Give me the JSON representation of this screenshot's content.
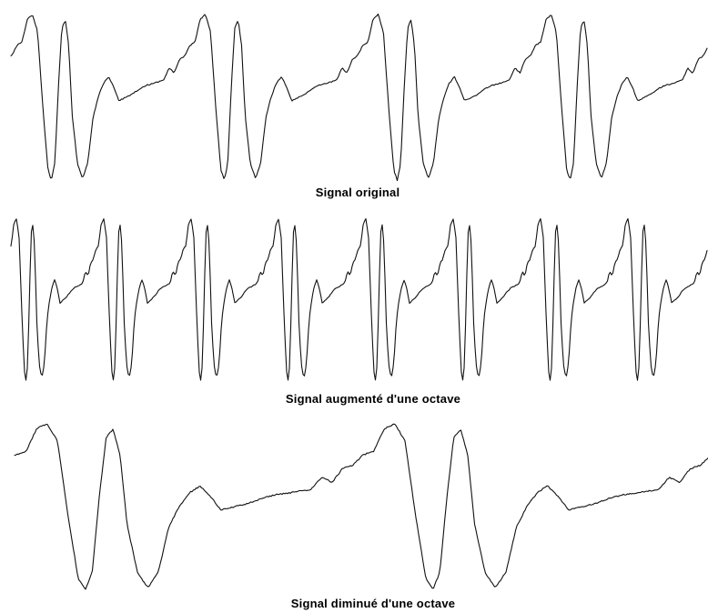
{
  "signals": [
    {
      "caption": "Signal original"
    },
    {
      "caption": "Signal augmenté d'une octave"
    },
    {
      "caption": "Signal diminué d'une octave"
    }
  ],
  "colors": {
    "stroke": "#111111",
    "background": "#ffffff"
  }
}
